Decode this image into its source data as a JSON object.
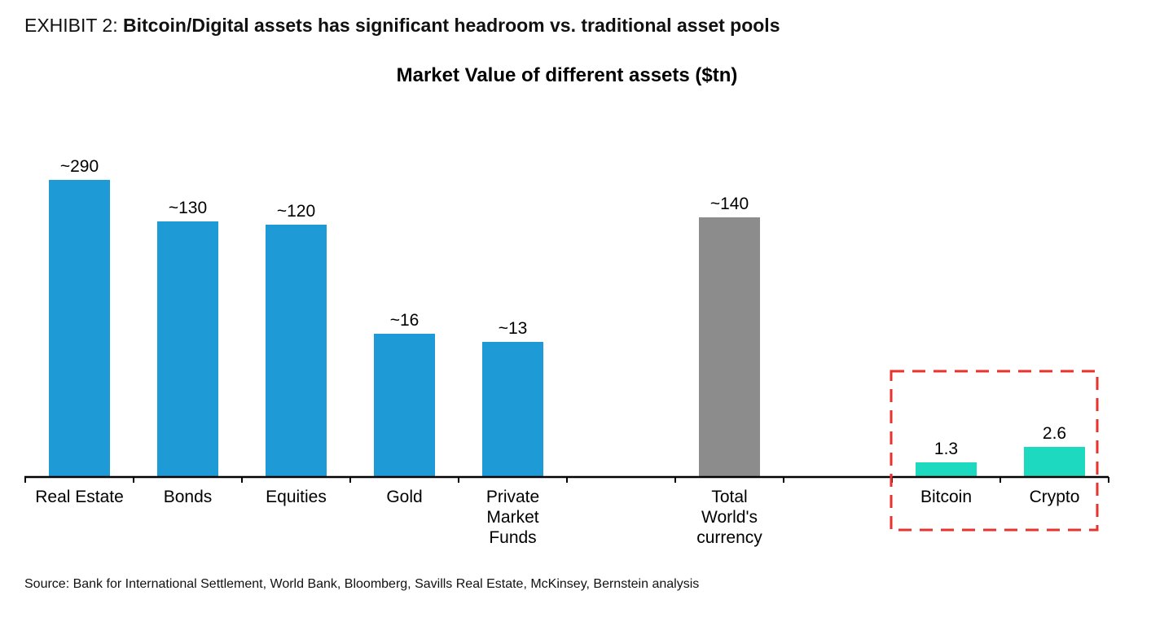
{
  "exhibit": {
    "label": "EXHIBIT 2:",
    "headline": "Bitcoin/Digital assets has significant headroom vs. traditional asset pools"
  },
  "source_note": "Source: Bank for International Settlement, World Bank, Bloomberg, Savills Real Estate, McKinsey, Bernstein analysis",
  "colors": {
    "traditional": "#1E9AD6",
    "currency": "#8C8C8C",
    "digital": "#1DD9BF",
    "highlight_box": "#E8322B",
    "axis": "#000000"
  },
  "chart_data": {
    "type": "bar",
    "title": "Market Value of different assets ($tn)",
    "xlabel": "",
    "ylabel": "",
    "axis_scale": "not-to-scale (no y-axis shown)",
    "grid": false,
    "legend": "none",
    "categories": [
      "Real Estate",
      "Bonds",
      "Equities",
      "Gold",
      "Private Market Funds",
      "",
      "Total World's currency",
      "",
      "Bitcoin",
      "Crypto"
    ],
    "bars": [
      {
        "label": "Real Estate",
        "value": 290,
        "value_label": "~290",
        "group": "traditional",
        "slot": 0
      },
      {
        "label": "Bonds",
        "value": 130,
        "value_label": "~130",
        "group": "traditional",
        "slot": 1
      },
      {
        "label": "Equities",
        "value": 120,
        "value_label": "~120",
        "group": "traditional",
        "slot": 2
      },
      {
        "label": "Gold",
        "value": 16,
        "value_label": "~16",
        "group": "traditional",
        "slot": 3
      },
      {
        "label": "Private Market Funds",
        "value": 13,
        "value_label": "~13",
        "group": "traditional",
        "slot": 4
      },
      {
        "label": "Total World's currency",
        "value": 140,
        "value_label": "~140",
        "group": "currency",
        "slot": 6
      },
      {
        "label": "Bitcoin",
        "value": 1.3,
        "value_label": "1.3",
        "group": "digital",
        "slot": 8
      },
      {
        "label": "Crypto",
        "value": 2.6,
        "value_label": "2.6",
        "group": "digital",
        "slot": 9
      }
    ],
    "tick_labels": [
      {
        "slot": 0,
        "lines": [
          "Real Estate"
        ]
      },
      {
        "slot": 1,
        "lines": [
          "Bonds"
        ]
      },
      {
        "slot": 2,
        "lines": [
          "Equities"
        ]
      },
      {
        "slot": 3,
        "lines": [
          "Gold"
        ]
      },
      {
        "slot": 4,
        "lines": [
          "Private",
          "Market",
          "Funds"
        ]
      },
      {
        "slot": 6,
        "lines": [
          "Total",
          "World's",
          "currency"
        ]
      },
      {
        "slot": 8,
        "lines": [
          "Bitcoin"
        ]
      },
      {
        "slot": 9,
        "lines": [
          "Crypto"
        ]
      }
    ],
    "highlight": {
      "slots": [
        8,
        9
      ],
      "style": "dashed-red-box"
    }
  }
}
